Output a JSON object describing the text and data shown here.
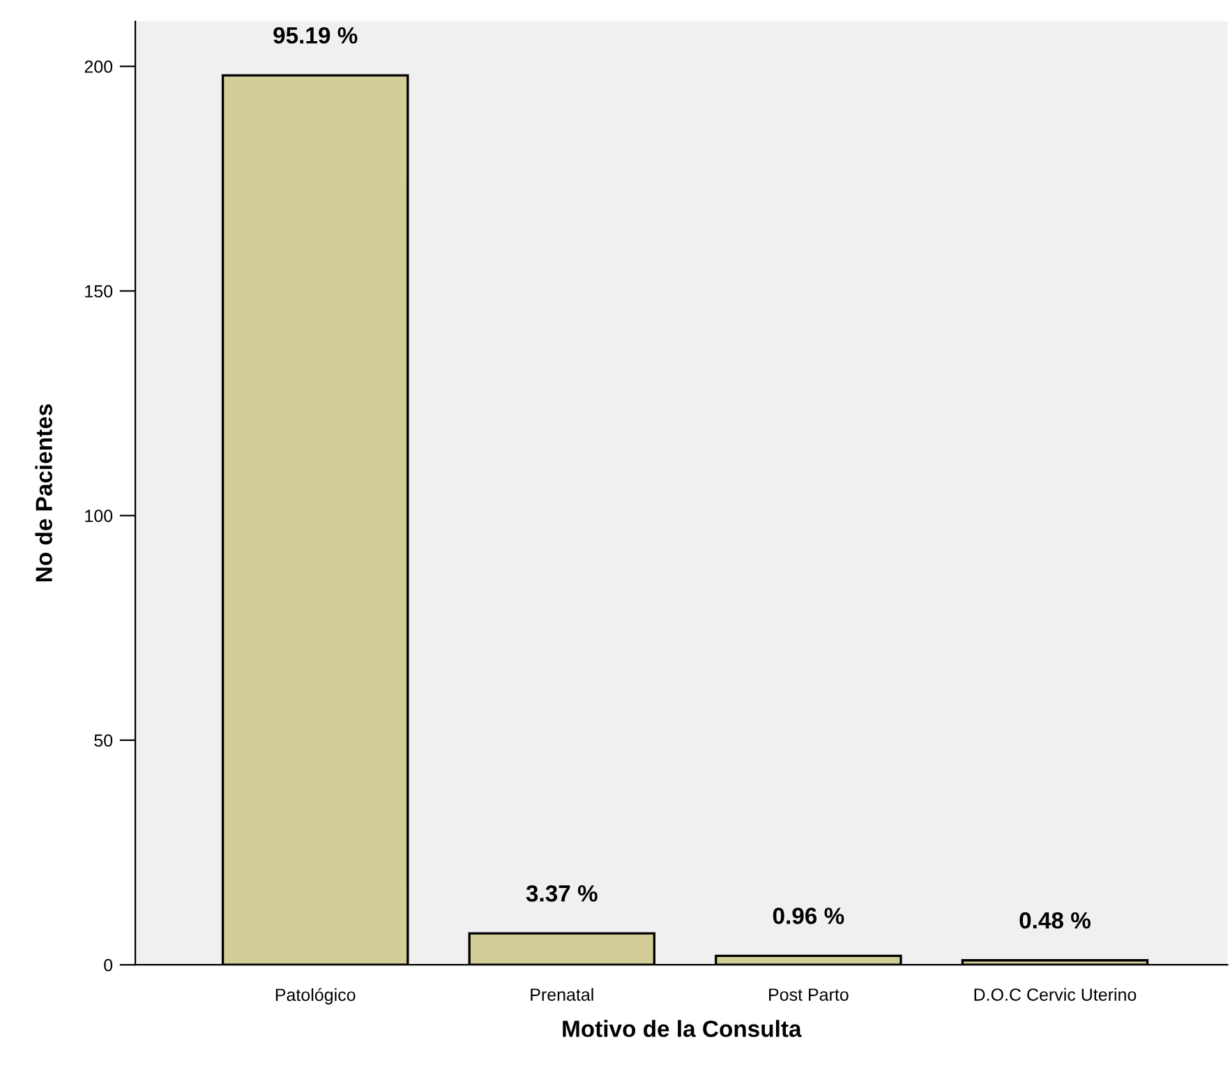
{
  "chart_data": {
    "type": "bar",
    "xlabel": "Motivo de la Consulta",
    "ylabel": "No de Pacientes",
    "categories": [
      "Patológico",
      "Prenatal",
      "Post Parto",
      "D.O.C Cervic Uterino"
    ],
    "values": [
      198,
      7,
      2,
      1
    ],
    "annotations": [
      {
        "text": "95.19 %",
        "x": "Patológico",
        "y": 198
      },
      {
        "text": "3.37 %",
        "x": "Prenatal",
        "y": 7
      },
      {
        "text": "0.96 %",
        "x": "Post Parto",
        "y": 2
      },
      {
        "text": "0.48 %",
        "x": "D.O.C Cervic Uterino",
        "y": 1
      }
    ],
    "color": "#d3ce97",
    "ylim": [
      0,
      210
    ],
    "yticks": [
      0,
      50,
      100,
      150,
      200
    ],
    "grid": false
  }
}
